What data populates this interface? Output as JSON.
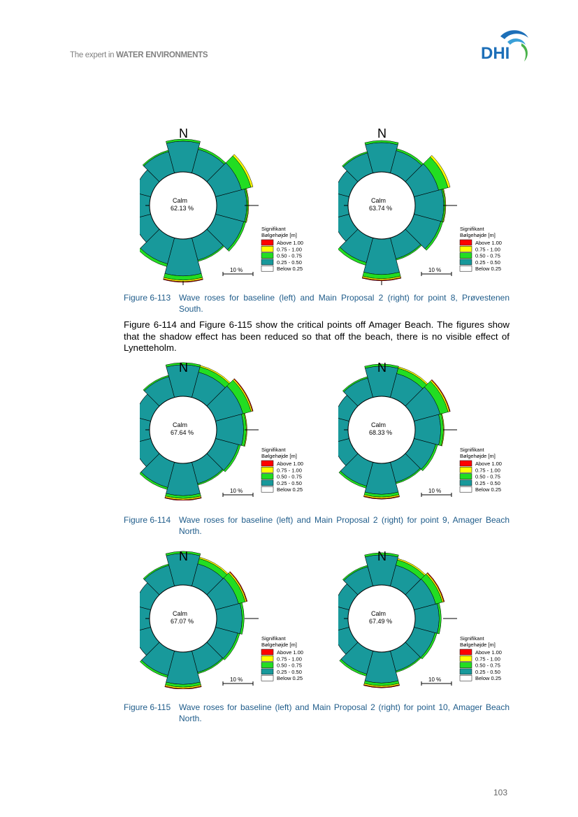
{
  "header": {
    "tagline_prefix": "The expert in ",
    "tagline_bold": "WATER ENVIRONMENTS",
    "logo_text": "DHI"
  },
  "colors": {
    "teal": "#18999b",
    "green": "#22dd22",
    "yellow": "#ffff00",
    "red": "#ff0000",
    "caption": "#1f5c8a"
  },
  "legend": {
    "title1": "Signifikant",
    "title2": "Bølgehøjde [m]",
    "items": [
      "Above 1.00",
      "0.75 - 1.00",
      "0.50 - 0.75",
      "0.25 - 0.50",
      "Below 0.25"
    ],
    "scale": "10 %"
  },
  "north_label": "N",
  "calm_label": "Calm",
  "figures": [
    {
      "number": "Figure 6-113",
      "caption": "Wave roses for baseline (left) and Main Proposal 2 (right) for point 8, Prøvestenen South.",
      "roses": [
        {
          "calm_value": "62.13 %"
        },
        {
          "calm_value": "63.74 %"
        }
      ]
    },
    {
      "number": "Figure 6-114",
      "caption": "Wave roses for baseline (left) and Main Proposal 2 (right) for point 9, Amager Beach North.",
      "roses": [
        {
          "calm_value": "67.64 %"
        },
        {
          "calm_value": "68.33 %"
        }
      ]
    },
    {
      "number": "Figure 6-115",
      "caption": "Wave roses for baseline (left) and Main Proposal 2 (right) for point 10, Amager Beach North.",
      "roses": [
        {
          "calm_value": "67.07 %"
        },
        {
          "calm_value": "67.49 %"
        }
      ]
    }
  ],
  "paragraph": "Figure 6-114 and Figure 6-115 show the critical points off Amager Beach. The figures show that the shadow effect has been reduced so that off the beach, there is no visible effect of Lynetteholm.",
  "page_number": "103"
}
